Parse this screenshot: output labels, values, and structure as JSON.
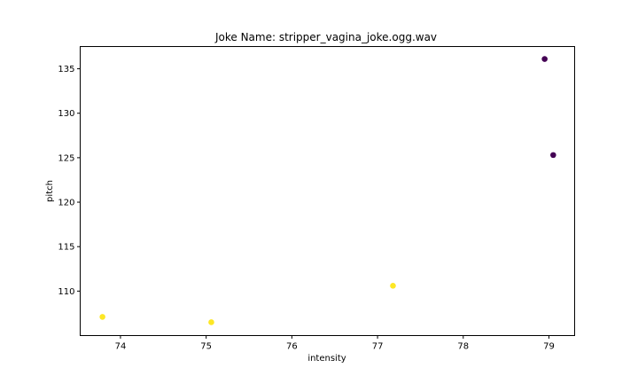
{
  "chart_data": {
    "type": "scatter",
    "title": "Joke Name: stripper_vagina_joke.ogg.wav",
    "xlabel": "intensity",
    "ylabel": "pitch",
    "xlim": [
      73.53,
      79.3
    ],
    "ylim": [
      105.0,
      137.5
    ],
    "xticks": [
      74,
      75,
      76,
      77,
      78,
      79
    ],
    "yticks": [
      110,
      115,
      120,
      125,
      130,
      135
    ],
    "grid": false,
    "colors": {
      "yellow": "#fde725",
      "purple": "#440154"
    },
    "points": [
      {
        "x": 73.79,
        "y": 107.1,
        "color": "yellow"
      },
      {
        "x": 75.06,
        "y": 106.5,
        "color": "yellow"
      },
      {
        "x": 77.18,
        "y": 110.6,
        "color": "yellow"
      },
      {
        "x": 78.95,
        "y": 136.1,
        "color": "purple"
      },
      {
        "x": 79.05,
        "y": 125.3,
        "color": "purple"
      }
    ]
  }
}
